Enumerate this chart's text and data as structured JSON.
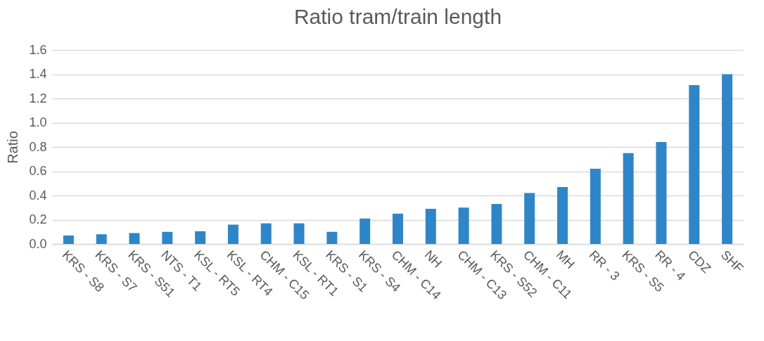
{
  "chart_data": {
    "type": "bar",
    "title": "Ratio tram/train length",
    "ylabel": "Ratio",
    "categories": [
      "KRS - S8",
      "KRS - S7",
      "KRS - S51",
      "NTS - T1",
      "KSL - RT5",
      "KSL - RT4",
      "CHM - C15",
      "KSL - RT1",
      "KRS - S1",
      "KRS - S4",
      "CHM - C14",
      "NH",
      "CHM - C13",
      "KRS - S52",
      "CHM - C11",
      "MH",
      "RR - 3",
      "KRS - S5",
      "RR - 4",
      "CDZ",
      "SHF"
    ],
    "values": [
      0.07,
      0.08,
      0.09,
      0.1,
      0.105,
      0.16,
      0.17,
      0.17,
      0.1,
      0.21,
      0.25,
      0.29,
      0.3,
      0.33,
      0.42,
      0.47,
      0.62,
      0.75,
      0.84,
      1.31,
      1.4
    ],
    "color": "#2e86c8",
    "ylim": [
      0,
      1.6
    ],
    "yticks": [
      {
        "value": 0,
        "label": "0.0"
      },
      {
        "value": 0.2,
        "label": "0.2"
      },
      {
        "value": 0.4,
        "label": "0.4"
      },
      {
        "value": 0.6,
        "label": "0.6"
      },
      {
        "value": 0.8,
        "label": "0.8"
      },
      {
        "value": 1,
        "label": "1.0"
      },
      {
        "value": 1.2,
        "label": "1.2"
      },
      {
        "value": 1.4,
        "label": "1.4"
      },
      {
        "value": 1.6,
        "label": "1.6"
      }
    ],
    "grid": "y"
  }
}
